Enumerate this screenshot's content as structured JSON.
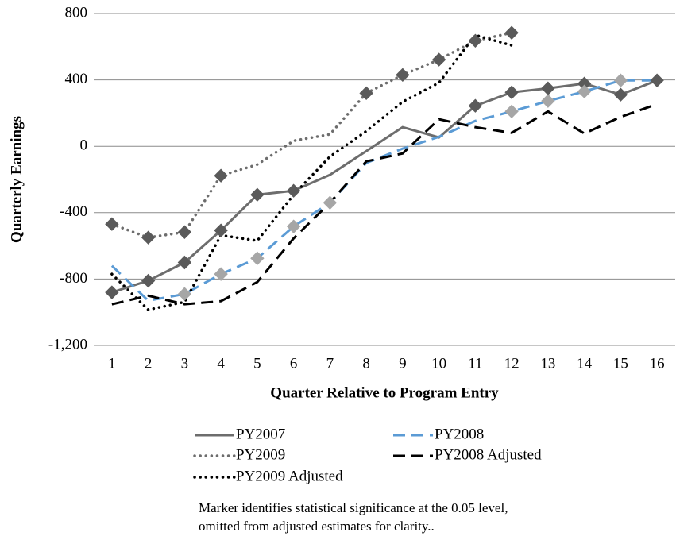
{
  "chart_data": {
    "type": "line",
    "x_label": "Quarter Relative to Program Entry",
    "y_label": "Quarterly Earnings",
    "categories": [
      "1",
      "2",
      "3",
      "4",
      "5",
      "6",
      "7",
      "8",
      "9",
      "10",
      "11",
      "12",
      "13",
      "14",
      "15",
      "16"
    ],
    "ylim": [
      -1200,
      800
    ],
    "yticks": [
      {
        "value": -1200,
        "label": "-1,200"
      },
      -800,
      -400,
      0,
      400,
      800
    ],
    "grid": true,
    "series": [
      {
        "name": "PY2007",
        "color": "#6d6d6d",
        "dash": "solid",
        "marker_color": "#5a5a5a",
        "values": [
          -880,
          -810,
          -700,
          -507,
          -292,
          -268,
          -172,
          -29,
          115,
          53,
          244,
          325,
          349,
          378,
          311,
          397
        ],
        "markers": [
          true,
          true,
          true,
          true,
          true,
          true,
          false,
          false,
          false,
          false,
          true,
          true,
          true,
          true,
          true,
          true
        ]
      },
      {
        "name": "PY2008",
        "color": "#5b9bd5",
        "dash": "dashed",
        "marker_color": "#a6a6a6",
        "values": [
          -720,
          -930,
          -890,
          -770,
          -675,
          -483,
          -340,
          -100,
          -14,
          57,
          153,
          210,
          273,
          330,
          397,
          397
        ],
        "markers": [
          false,
          false,
          true,
          true,
          true,
          true,
          true,
          false,
          false,
          false,
          false,
          true,
          true,
          true,
          true,
          false
        ]
      },
      {
        "name": "PY2009",
        "color": "#6d6d6d",
        "dash": "dotted",
        "marker_color": "#5a5a5a",
        "values": [
          -469,
          -550,
          -517,
          -177,
          -110,
          33,
          72,
          320,
          430,
          522,
          636,
          684,
          null,
          null,
          null,
          null
        ],
        "markers": [
          true,
          true,
          true,
          true,
          false,
          false,
          false,
          true,
          true,
          true,
          true,
          true,
          false,
          false,
          false,
          false
        ]
      },
      {
        "name": "PY2008 Adjusted",
        "color": "#000000",
        "dash": "dashed",
        "values": [
          -952,
          -900,
          -952,
          -933,
          -818,
          -555,
          -340,
          -91,
          -43,
          163,
          115,
          81,
          210,
          77,
          177,
          254
        ]
      },
      {
        "name": "PY2009 Adjusted",
        "color": "#000000",
        "dash": "dotted",
        "values": [
          -770,
          -985,
          -938,
          -536,
          -569,
          -292,
          -62,
          91,
          268,
          383,
          670,
          608,
          null,
          null,
          null,
          null
        ]
      }
    ],
    "note": [
      "Marker identifies statistical significance at the 0.05 level,",
      "omitted from adjusted estimates for clarity.."
    ]
  }
}
